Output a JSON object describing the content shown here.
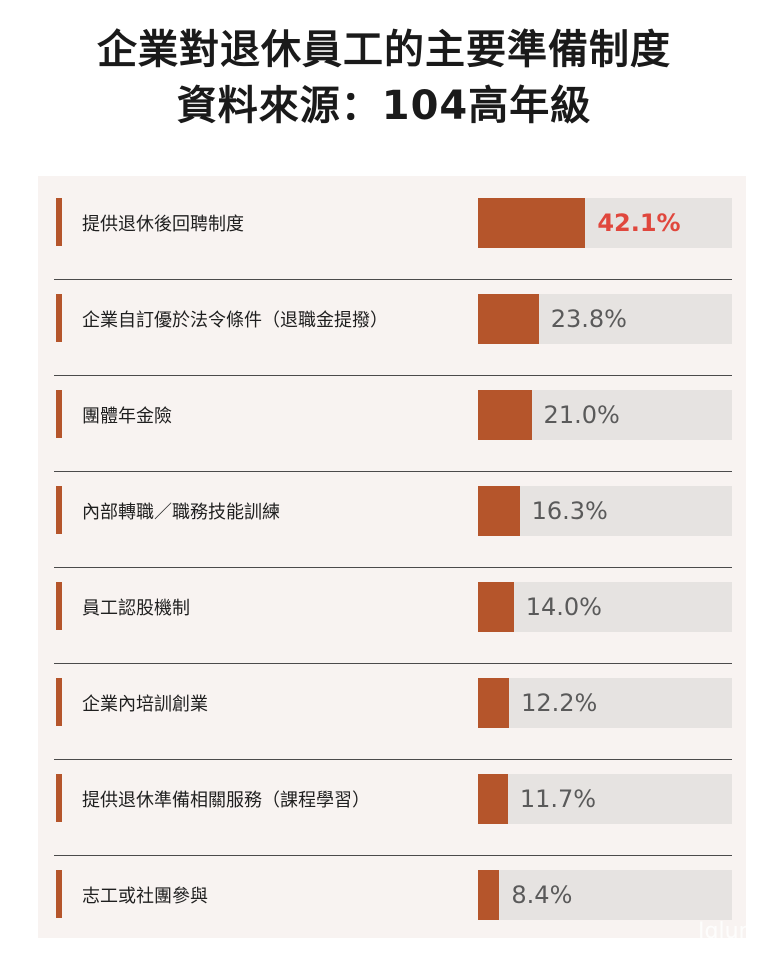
{
  "title_line1": "企業對退休員工的主要準備制度",
  "title_line2": "資料來源：104高年級",
  "watermark": "Iqlum",
  "colors": {
    "bar": "#b5552b",
    "track": "#e6e3e1",
    "highlight": "#e0473d",
    "panel": "#f8f3f1"
  },
  "chart_data": {
    "type": "bar",
    "orientation": "horizontal",
    "title": "企業對退休員工的主要準備制度",
    "subtitle": "資料來源：104高年級",
    "xlim": [
      0,
      100
    ],
    "categories": [
      "提供退休後回聘制度",
      "企業自訂優於法令條件（退職金提撥）",
      "團體年金險",
      "內部轉職／職務技能訓練",
      "員工認股機制",
      "企業內培訓創業",
      "提供退休準備相關服務（課程學習）",
      "志工或社團參與"
    ],
    "values": [
      42.1,
      23.8,
      21.0,
      16.3,
      14.0,
      12.2,
      11.7,
      8.4
    ],
    "value_labels": [
      "42.1%",
      "23.8%",
      "21.0%",
      "16.3%",
      "14.0%",
      "12.2%",
      "11.7%",
      "8.4%"
    ],
    "highlighted_index": 0
  }
}
